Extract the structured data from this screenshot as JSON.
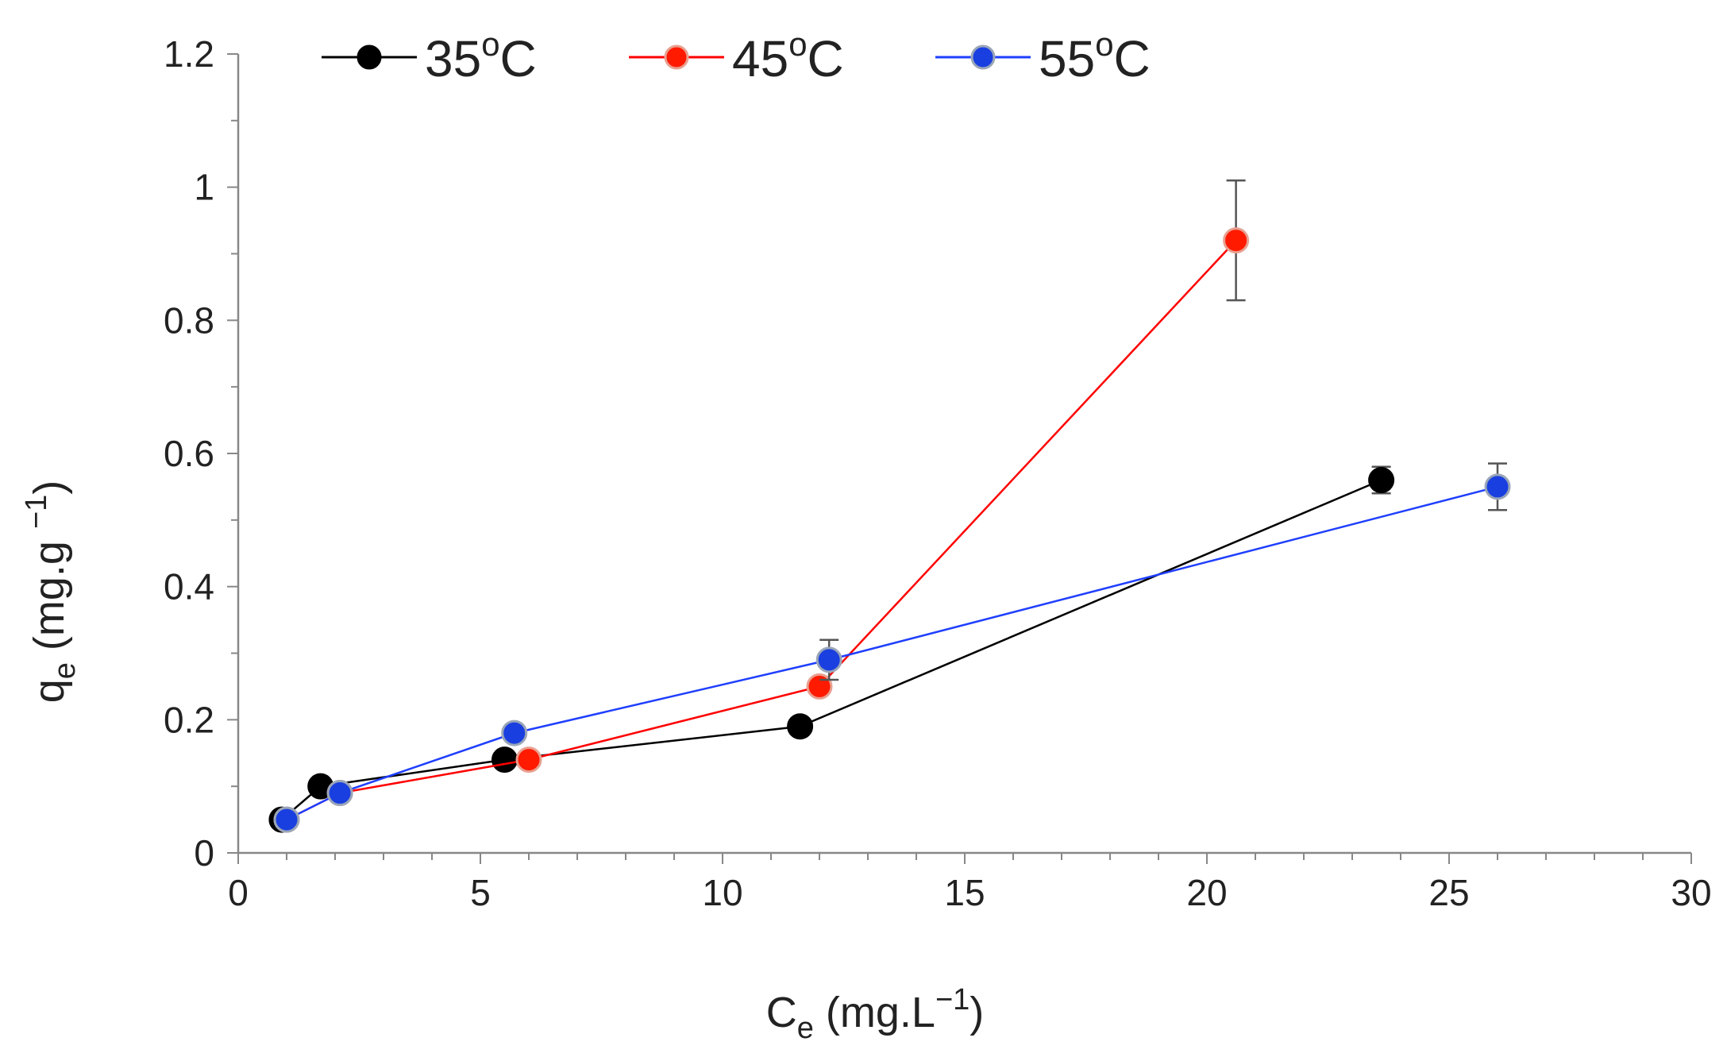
{
  "chart_data": {
    "type": "line",
    "title": "",
    "xlabel": {
      "base": "C",
      "sub": "e",
      "unit_prefix": " (mg.L",
      "unit_sup": "−1",
      "unit_suffix": ")"
    },
    "ylabel": {
      "base": "q",
      "sub": "e",
      "unit_prefix": " (mg.g ",
      "unit_sup": "−1",
      "unit_suffix": ")"
    },
    "xlim": [
      0,
      30
    ],
    "ylim": [
      0,
      1.2
    ],
    "x_ticks": [
      0,
      5,
      10,
      15,
      20,
      25,
      30
    ],
    "x_tick_labels": [
      "0",
      "5",
      "10",
      "15",
      "20",
      "25",
      "30"
    ],
    "x_minor_step": 1,
    "y_ticks": [
      0,
      0.2,
      0.4,
      0.6,
      0.8,
      1.0,
      1.2
    ],
    "y_tick_labels": [
      "0",
      "0.2",
      "0.4",
      "0.6",
      "0.8",
      "1",
      "1.2"
    ],
    "y_minor_step": 0.1,
    "grid": false,
    "legend_position": "top",
    "series": [
      {
        "name": "35ºC",
        "legend_value": "35",
        "legend_deg": "o",
        "legend_unit": "C",
        "line_color": "#000000",
        "marker_fill": "#000000",
        "marker_stroke": "#000000",
        "x": [
          0.9,
          1.7,
          5.5,
          11.6,
          23.6
        ],
        "y": [
          0.05,
          0.1,
          0.14,
          0.19,
          0.56
        ],
        "err": [
          0,
          0,
          0,
          0,
          0.02
        ]
      },
      {
        "name": "45ºC",
        "legend_value": "45",
        "legend_deg": "o",
        "legend_unit": "C",
        "line_color": "#ff0000",
        "marker_fill": "#ff1a00",
        "marker_stroke": "#e8a090",
        "x": [
          1.0,
          2.1,
          6.0,
          12.0,
          20.6
        ],
        "y": [
          0.05,
          0.09,
          0.14,
          0.25,
          0.92
        ],
        "err": [
          0,
          0,
          0,
          0,
          0.09
        ]
      },
      {
        "name": "55ºC",
        "legend_value": "55",
        "legend_deg": "o",
        "legend_unit": "C",
        "line_color": "#1f3fff",
        "marker_fill": "#1a3fe0",
        "marker_stroke": "#9aa6b8",
        "x": [
          1.0,
          2.1,
          5.7,
          12.2,
          26.0
        ],
        "y": [
          0.05,
          0.09,
          0.18,
          0.29,
          0.55
        ],
        "err": [
          0,
          0,
          0,
          0.03,
          0.035
        ]
      }
    ]
  }
}
